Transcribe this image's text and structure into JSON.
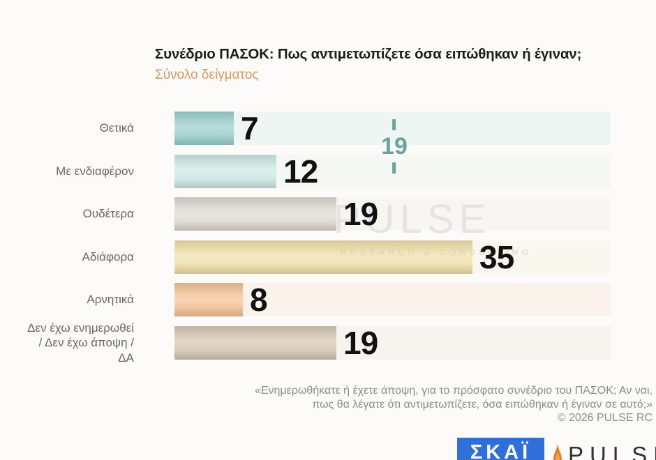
{
  "header": {
    "title": "Συνέδριο ΠΑΣΟΚ: Πως αντιμετωπίζετε όσα ειπώθηκαν ή έγιναν;",
    "subtitle": "Σύνολο δείγματος"
  },
  "chart_data": {
    "type": "bar",
    "orientation": "horizontal",
    "title": "Συνέδριο ΠΑΣΟΚ: Πως αντιμετωπίζετε όσα ειπώθηκαν ή έγιναν;",
    "subtitle": "Σύνολο δείγματος",
    "categories": [
      "Θετικά",
      "Με ενδιαφέρον",
      "Ουδέτερα",
      "Αδιάφορα",
      "Αρνητικά",
      "Δεν έχω ενημερωθεί\n/ Δεν έχω άποψη / ΔΑ"
    ],
    "values": [
      7,
      12,
      19,
      35,
      8,
      19
    ],
    "bar_colors": [
      "#9ccfcb",
      "#cde7e3",
      "#ddd8d0",
      "#eddfa9",
      "#f3c195",
      "#d5c7b1"
    ],
    "xlim": [
      0,
      51
    ],
    "grid": false,
    "legend": false,
    "value_labels_shown": true,
    "annotation": {
      "label": "19",
      "color": "#68a49e"
    }
  },
  "watermark": {
    "line1": "PULSE",
    "line2": "RESEARCH & CONSULTING"
  },
  "footer": {
    "line1": "«Ενημερωθήκατε ή έχετε άποψη, για το πρόσφατο συνέδριο του ΠΑΣΟΚ; Αν ναι,",
    "line2": "πως θα λέγατε ότι αντιμετωπίζετε, όσα ειπώθηκαν ή έγιναν σε αυτό;»",
    "copyright": "©  2026  PULSE RC"
  },
  "logos": {
    "skai": "ΣΚΑΪ",
    "skai_bg": "#2e6fd9",
    "pulse": "PULSE",
    "flame_color": "#e07b2a"
  }
}
